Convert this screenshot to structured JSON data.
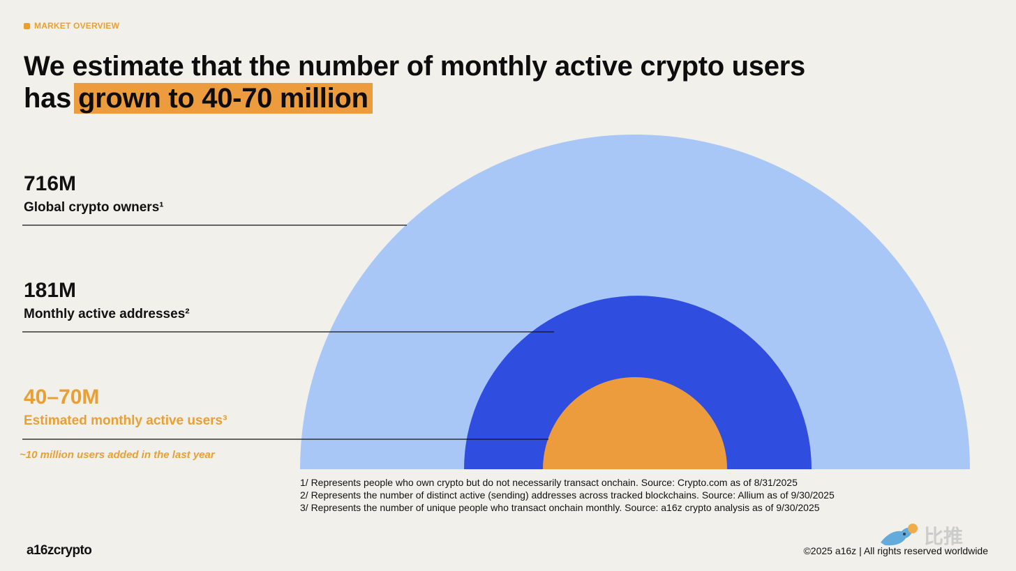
{
  "section_tag": "MARKET OVERVIEW",
  "headline": {
    "line1": "We estimate that the number of monthly active crypto users",
    "line2_prefix": "has",
    "line2_highlight": "grown to 40-70 million"
  },
  "chart_data": {
    "type": "nested-semicircles",
    "series": [
      {
        "value": "716M",
        "label": "Global crypto owners¹",
        "color": "#a8c7f7"
      },
      {
        "value": "181M",
        "label": "Monthly active addresses²",
        "color": "#2f4ee0"
      },
      {
        "value": "40–70M",
        "label": "Estimated monthly active users³",
        "color": "#ec9c3c"
      }
    ],
    "note": "~10 million users added in the last year"
  },
  "footnotes": [
    "1/ Represents people who own crypto but do not necessarily transact onchain. Source: Crypto.com as of 8/31/2025",
    "2/ Represents the number of distinct active (sending) addresses across tracked blockchains. Source: Allium as of 9/30/2025",
    "3/ Represents the number of unique people who transact onchain monthly. Source: a16z crypto analysis as of 9/30/2025"
  ],
  "footer": {
    "logo": "a16zcrypto",
    "copyright": "©2025 a16z | All rights reserved worldwide"
  },
  "watermark": {
    "text": "比推",
    "icon": "bird-icon"
  }
}
